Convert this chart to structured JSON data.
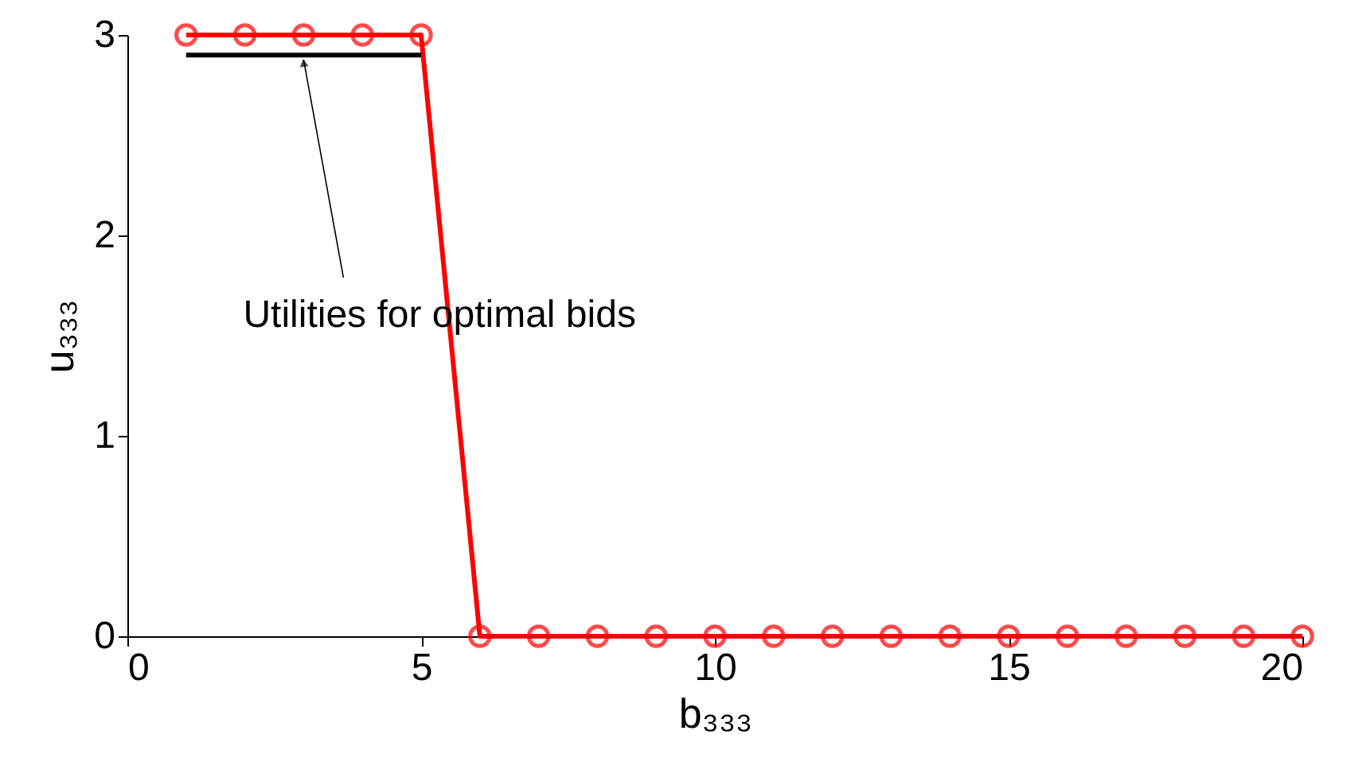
{
  "chart_data": {
    "type": "line",
    "xlabel": "b₃₃₃",
    "ylabel": "u₃₃₃",
    "x": [
      1,
      2,
      3,
      4,
      5,
      6,
      7,
      8,
      9,
      10,
      11,
      12,
      13,
      14,
      15,
      16,
      17,
      18,
      19,
      20
    ],
    "series": [
      {
        "color": "#ff0000",
        "marker": "circle",
        "values": [
          3,
          3,
          3,
          3,
          3,
          0,
          0,
          0,
          0,
          0,
          0,
          0,
          0,
          0,
          0,
          0,
          0,
          0,
          0,
          0
        ]
      },
      {
        "color": "#000000",
        "marker": "none",
        "x": [
          1,
          5
        ],
        "values": [
          2.9,
          2.9
        ]
      }
    ],
    "annotations": [
      {
        "text": "Utilities for optimal bids",
        "x": 3,
        "y": 2.9
      }
    ],
    "xlim": [
      0,
      20
    ],
    "xticks": [
      0,
      5,
      10,
      15,
      20
    ],
    "ylim": [
      0,
      3
    ],
    "yticks": [
      0,
      1,
      2,
      3
    ],
    "grid": false,
    "line_style": "solid"
  }
}
